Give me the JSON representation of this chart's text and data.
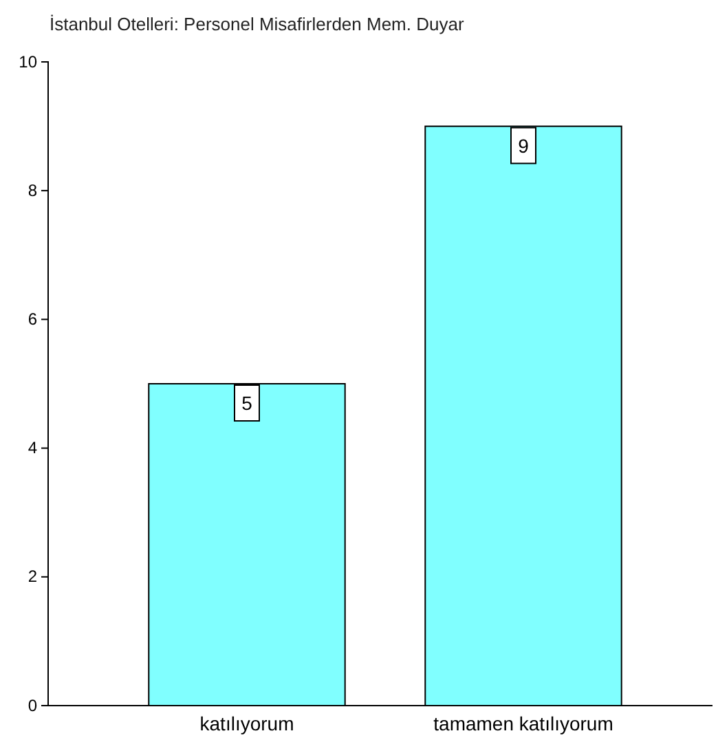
{
  "chart_data": {
    "type": "bar",
    "title": "İstanbul Otelleri: Personel Misafirlerden Mem. Duyar",
    "categories": [
      "katılıyorum",
      "tamamen katılıyorum"
    ],
    "values": [
      5,
      9
    ],
    "color": "#80ffff",
    "ylim": [
      0,
      10
    ],
    "yticks": [
      0,
      2,
      4,
      6,
      8,
      10
    ],
    "data_labels": true
  }
}
